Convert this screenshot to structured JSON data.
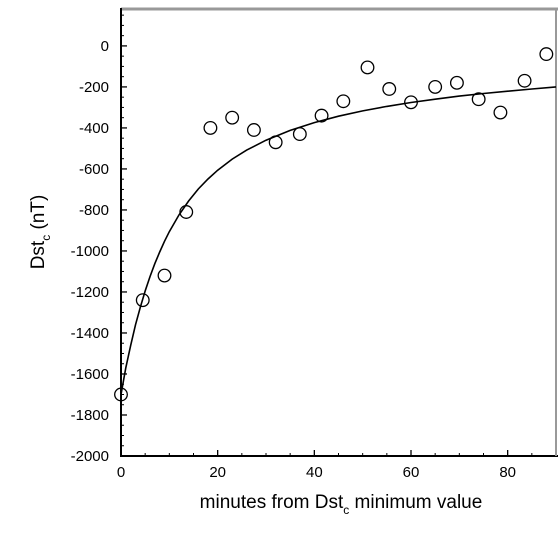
{
  "chart_data": {
    "type": "scatter",
    "xlabel": {
      "prefix": "minutes from Dst",
      "sub": "c",
      "suffix": " minimum value"
    },
    "ylabel": {
      "prefix": "Dst",
      "sub": "c",
      "suffix": " (nT)"
    },
    "xlim": [
      0,
      90
    ],
    "ylim": [
      -2000,
      180
    ],
    "x_ticks": [
      0,
      20,
      40,
      60,
      80
    ],
    "y_ticks": [
      0,
      -200,
      -400,
      -600,
      -800,
      -1000,
      -1200,
      -1400,
      -1600,
      -1800,
      -2000
    ],
    "grid": false,
    "series": [
      {
        "kind": "points",
        "marker": "open-circle",
        "x": [
          0,
          4.5,
          9,
          13.5,
          18.5,
          23,
          27.5,
          32,
          37,
          41.5,
          46,
          51,
          55.5,
          60,
          65,
          69.5,
          74,
          78.5,
          83.5,
          88
        ],
        "y": [
          -1700,
          -1240,
          -1120,
          -810,
          -400,
          -350,
          -410,
          -470,
          -430,
          -340,
          -270,
          -105,
          -210,
          -275,
          -200,
          -180,
          -260,
          -325,
          -170,
          -40
        ]
      },
      {
        "kind": "fit-curve",
        "x": [
          0,
          1,
          2,
          3,
          4,
          5,
          6,
          7,
          8,
          9,
          10,
          12,
          14,
          16,
          18,
          20,
          23,
          26,
          30,
          35,
          40,
          45,
          50,
          55,
          60,
          65,
          70,
          75,
          80,
          85,
          90
        ],
        "y": [
          -1700,
          -1570,
          -1460,
          -1360,
          -1275,
          -1195,
          -1125,
          -1062,
          -1005,
          -953,
          -906,
          -824,
          -756,
          -698,
          -649,
          -606,
          -552,
          -508,
          -460,
          -412,
          -374,
          -343,
          -317,
          -295,
          -276,
          -260,
          -245,
          -232,
          -221,
          -210,
          -200
        ]
      }
    ]
  }
}
